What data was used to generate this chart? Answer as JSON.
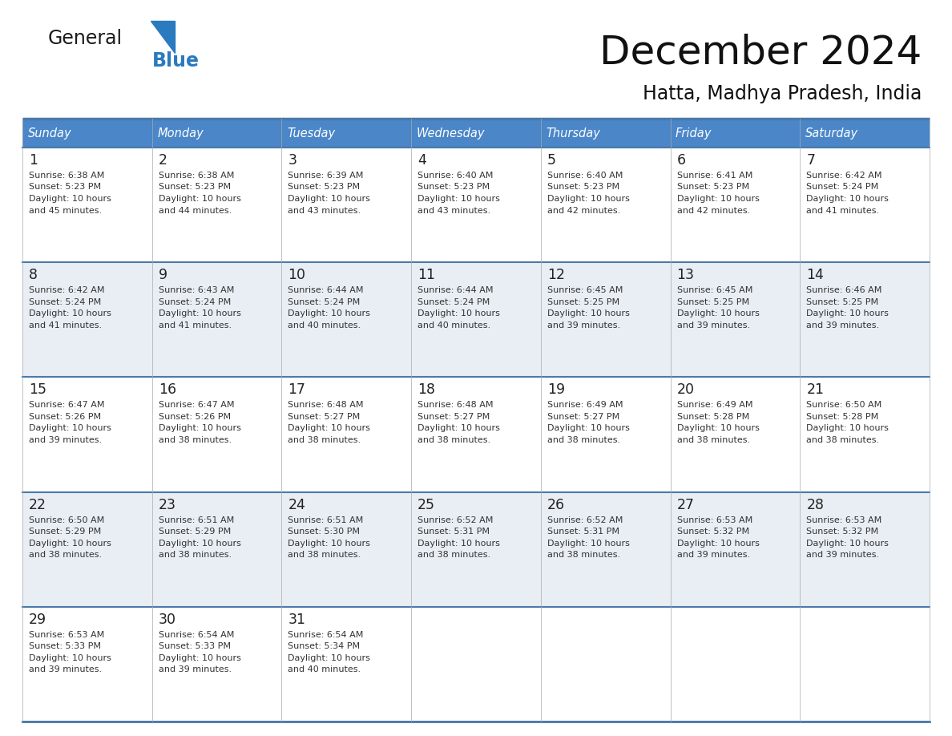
{
  "title": "December 2024",
  "subtitle": "Hatta, Madhya Pradesh, India",
  "header_color": "#4a86c8",
  "header_text_color": "#ffffff",
  "row_colors": [
    "#ffffff",
    "#e8eef4"
  ],
  "border_color": "#4a7aab",
  "cell_text_color": "#333333",
  "days_of_week": [
    "Sunday",
    "Monday",
    "Tuesday",
    "Wednesday",
    "Thursday",
    "Friday",
    "Saturday"
  ],
  "weeks": [
    [
      {
        "day": 1,
        "sunrise": "6:38 AM",
        "sunset": "5:23 PM",
        "daylight": "10 hours and 45 minutes."
      },
      {
        "day": 2,
        "sunrise": "6:38 AM",
        "sunset": "5:23 PM",
        "daylight": "10 hours and 44 minutes."
      },
      {
        "day": 3,
        "sunrise": "6:39 AM",
        "sunset": "5:23 PM",
        "daylight": "10 hours and 43 minutes."
      },
      {
        "day": 4,
        "sunrise": "6:40 AM",
        "sunset": "5:23 PM",
        "daylight": "10 hours and 43 minutes."
      },
      {
        "day": 5,
        "sunrise": "6:40 AM",
        "sunset": "5:23 PM",
        "daylight": "10 hours and 42 minutes."
      },
      {
        "day": 6,
        "sunrise": "6:41 AM",
        "sunset": "5:23 PM",
        "daylight": "10 hours and 42 minutes."
      },
      {
        "day": 7,
        "sunrise": "6:42 AM",
        "sunset": "5:24 PM",
        "daylight": "10 hours and 41 minutes."
      }
    ],
    [
      {
        "day": 8,
        "sunrise": "6:42 AM",
        "sunset": "5:24 PM",
        "daylight": "10 hours and 41 minutes."
      },
      {
        "day": 9,
        "sunrise": "6:43 AM",
        "sunset": "5:24 PM",
        "daylight": "10 hours and 41 minutes."
      },
      {
        "day": 10,
        "sunrise": "6:44 AM",
        "sunset": "5:24 PM",
        "daylight": "10 hours and 40 minutes."
      },
      {
        "day": 11,
        "sunrise": "6:44 AM",
        "sunset": "5:24 PM",
        "daylight": "10 hours and 40 minutes."
      },
      {
        "day": 12,
        "sunrise": "6:45 AM",
        "sunset": "5:25 PM",
        "daylight": "10 hours and 39 minutes."
      },
      {
        "day": 13,
        "sunrise": "6:45 AM",
        "sunset": "5:25 PM",
        "daylight": "10 hours and 39 minutes."
      },
      {
        "day": 14,
        "sunrise": "6:46 AM",
        "sunset": "5:25 PM",
        "daylight": "10 hours and 39 minutes."
      }
    ],
    [
      {
        "day": 15,
        "sunrise": "6:47 AM",
        "sunset": "5:26 PM",
        "daylight": "10 hours and 39 minutes."
      },
      {
        "day": 16,
        "sunrise": "6:47 AM",
        "sunset": "5:26 PM",
        "daylight": "10 hours and 38 minutes."
      },
      {
        "day": 17,
        "sunrise": "6:48 AM",
        "sunset": "5:27 PM",
        "daylight": "10 hours and 38 minutes."
      },
      {
        "day": 18,
        "sunrise": "6:48 AM",
        "sunset": "5:27 PM",
        "daylight": "10 hours and 38 minutes."
      },
      {
        "day": 19,
        "sunrise": "6:49 AM",
        "sunset": "5:27 PM",
        "daylight": "10 hours and 38 minutes."
      },
      {
        "day": 20,
        "sunrise": "6:49 AM",
        "sunset": "5:28 PM",
        "daylight": "10 hours and 38 minutes."
      },
      {
        "day": 21,
        "sunrise": "6:50 AM",
        "sunset": "5:28 PM",
        "daylight": "10 hours and 38 minutes."
      }
    ],
    [
      {
        "day": 22,
        "sunrise": "6:50 AM",
        "sunset": "5:29 PM",
        "daylight": "10 hours and 38 minutes."
      },
      {
        "day": 23,
        "sunrise": "6:51 AM",
        "sunset": "5:29 PM",
        "daylight": "10 hours and 38 minutes."
      },
      {
        "day": 24,
        "sunrise": "6:51 AM",
        "sunset": "5:30 PM",
        "daylight": "10 hours and 38 minutes."
      },
      {
        "day": 25,
        "sunrise": "6:52 AM",
        "sunset": "5:31 PM",
        "daylight": "10 hours and 38 minutes."
      },
      {
        "day": 26,
        "sunrise": "6:52 AM",
        "sunset": "5:31 PM",
        "daylight": "10 hours and 38 minutes."
      },
      {
        "day": 27,
        "sunrise": "6:53 AM",
        "sunset": "5:32 PM",
        "daylight": "10 hours and 39 minutes."
      },
      {
        "day": 28,
        "sunrise": "6:53 AM",
        "sunset": "5:32 PM",
        "daylight": "10 hours and 39 minutes."
      }
    ],
    [
      {
        "day": 29,
        "sunrise": "6:53 AM",
        "sunset": "5:33 PM",
        "daylight": "10 hours and 39 minutes."
      },
      {
        "day": 30,
        "sunrise": "6:54 AM",
        "sunset": "5:33 PM",
        "daylight": "10 hours and 39 minutes."
      },
      {
        "day": 31,
        "sunrise": "6:54 AM",
        "sunset": "5:34 PM",
        "daylight": "10 hours and 40 minutes."
      },
      null,
      null,
      null,
      null
    ]
  ],
  "logo_general_color": "#1a1a1a",
  "logo_blue_color": "#2a7abf",
  "logo_triangle_color": "#2a7abf"
}
